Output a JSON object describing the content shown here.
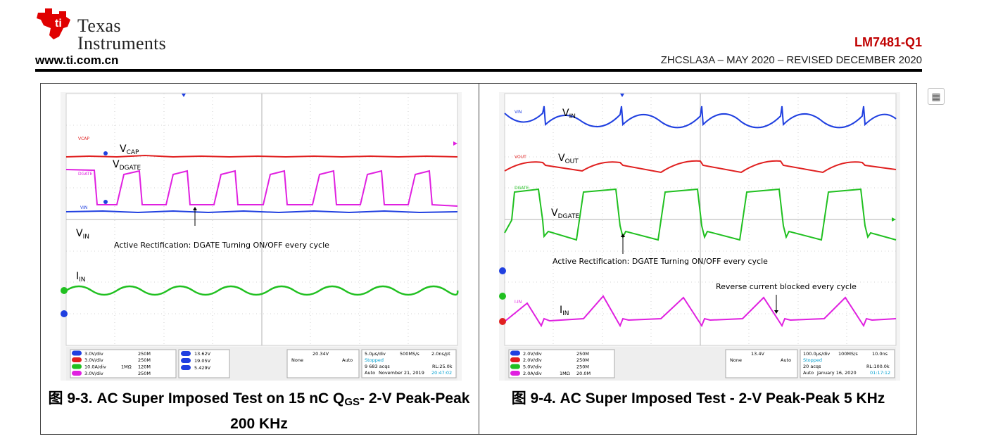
{
  "header": {
    "brand_line1": "Texas",
    "brand_line2": "Instruments",
    "url": "www.ti.com.cn",
    "part_number": "LM7481-Q1",
    "doc_id": "ZHCSLA3A – MAY 2020 – REVISED DECEMBER 2020"
  },
  "figures": [
    {
      "caption_part1": "图 9-3. AC Super Imposed Test on 15 nC Q",
      "caption_sub": "GS",
      "caption_part2": "- 2-V Peak-Peak 200 KHz",
      "trace_labels": [
        "VCAP",
        "DGATE",
        "VIN"
      ],
      "annotations": {
        "vcap": "V",
        "vcap_sub": "CAP",
        "vdgate": "V",
        "vdgate_sub": "DGATE",
        "vin": "V",
        "vin_sub": "IN",
        "iin": "I",
        "iin_sub": "IN",
        "note": "Active Rectification: DGATE Turning ON/OFF every cycle"
      },
      "channels": [
        {
          "id": "C1",
          "scale": "3.0V/div",
          "bw": "250M",
          "color": "#2040e0"
        },
        {
          "id": "C2",
          "scale": "3.0V/div",
          "bw": "250M",
          "color": "#e02020"
        },
        {
          "id": "C3",
          "scale": "10.0A/div",
          "imp": "1MΩ",
          "bw": "120M",
          "color": "#20c020"
        },
        {
          "id": "C4",
          "scale": "3.0V/div",
          "bw": "250M",
          "color": "#e020e0"
        }
      ],
      "cursors": [
        "13.62V",
        "19.05V",
        "5.429V"
      ],
      "trigger": {
        "level": "20.34V",
        "mode": "None",
        "type": "Auto"
      },
      "timebase": {
        "scale": "5.0µs/div",
        "rate": "500MS/s",
        "pt": "2.0ns/pt",
        "state": "Stopped",
        "acqs": "9 683 acqs",
        "rl": "RL:25.0k",
        "mode": "Auto",
        "date": "November 21, 2019",
        "time": "20:47:02"
      }
    },
    {
      "caption_part1": "图 9-4. AC Super Imposed Test - 2-V Peak-Peak 5 KHz",
      "trace_labels": [
        "VIN",
        "VOUT",
        "DGATE",
        "I-IN"
      ],
      "annotations": {
        "vin": "V",
        "vin_sub": "IN",
        "vout": "V",
        "vout_sub": "OUT",
        "vdgate": "V",
        "vdgate_sub": "DGATE",
        "iin": "I",
        "iin_sub": "IN",
        "note": "Active Rectification: DGATE Turning ON/OFF every cycle",
        "note2": "Reverse current blocked every cycle"
      },
      "channels": [
        {
          "id": "C1",
          "scale": "2.0V/div",
          "bw": "250M",
          "color": "#2040e0"
        },
        {
          "id": "C2",
          "scale": "2.0V/div",
          "bw": "250M",
          "color": "#e02020"
        },
        {
          "id": "C3",
          "scale": "5.0V/div",
          "bw": "250M",
          "color": "#20c020"
        },
        {
          "id": "C4",
          "scale": "2.0A/div",
          "imp": "1MΩ",
          "bw": "20.0M",
          "color": "#e020e0"
        }
      ],
      "trigger": {
        "level": "13.4V",
        "mode": "None",
        "type": "Auto"
      },
      "timebase": {
        "scale": "100.0µs/div",
        "rate": "100MS/s",
        "pt": "10.0ns",
        "state": "Stopped",
        "acqs": "20 acqs",
        "rl": "RL:100.0k",
        "mode": "Auto",
        "date": "January 16, 2020",
        "time": "01:17:12"
      }
    }
  ],
  "colors": {
    "accent": "#c00000",
    "grid_bg": "#ffffff",
    "dot": "#b8b8b8"
  }
}
